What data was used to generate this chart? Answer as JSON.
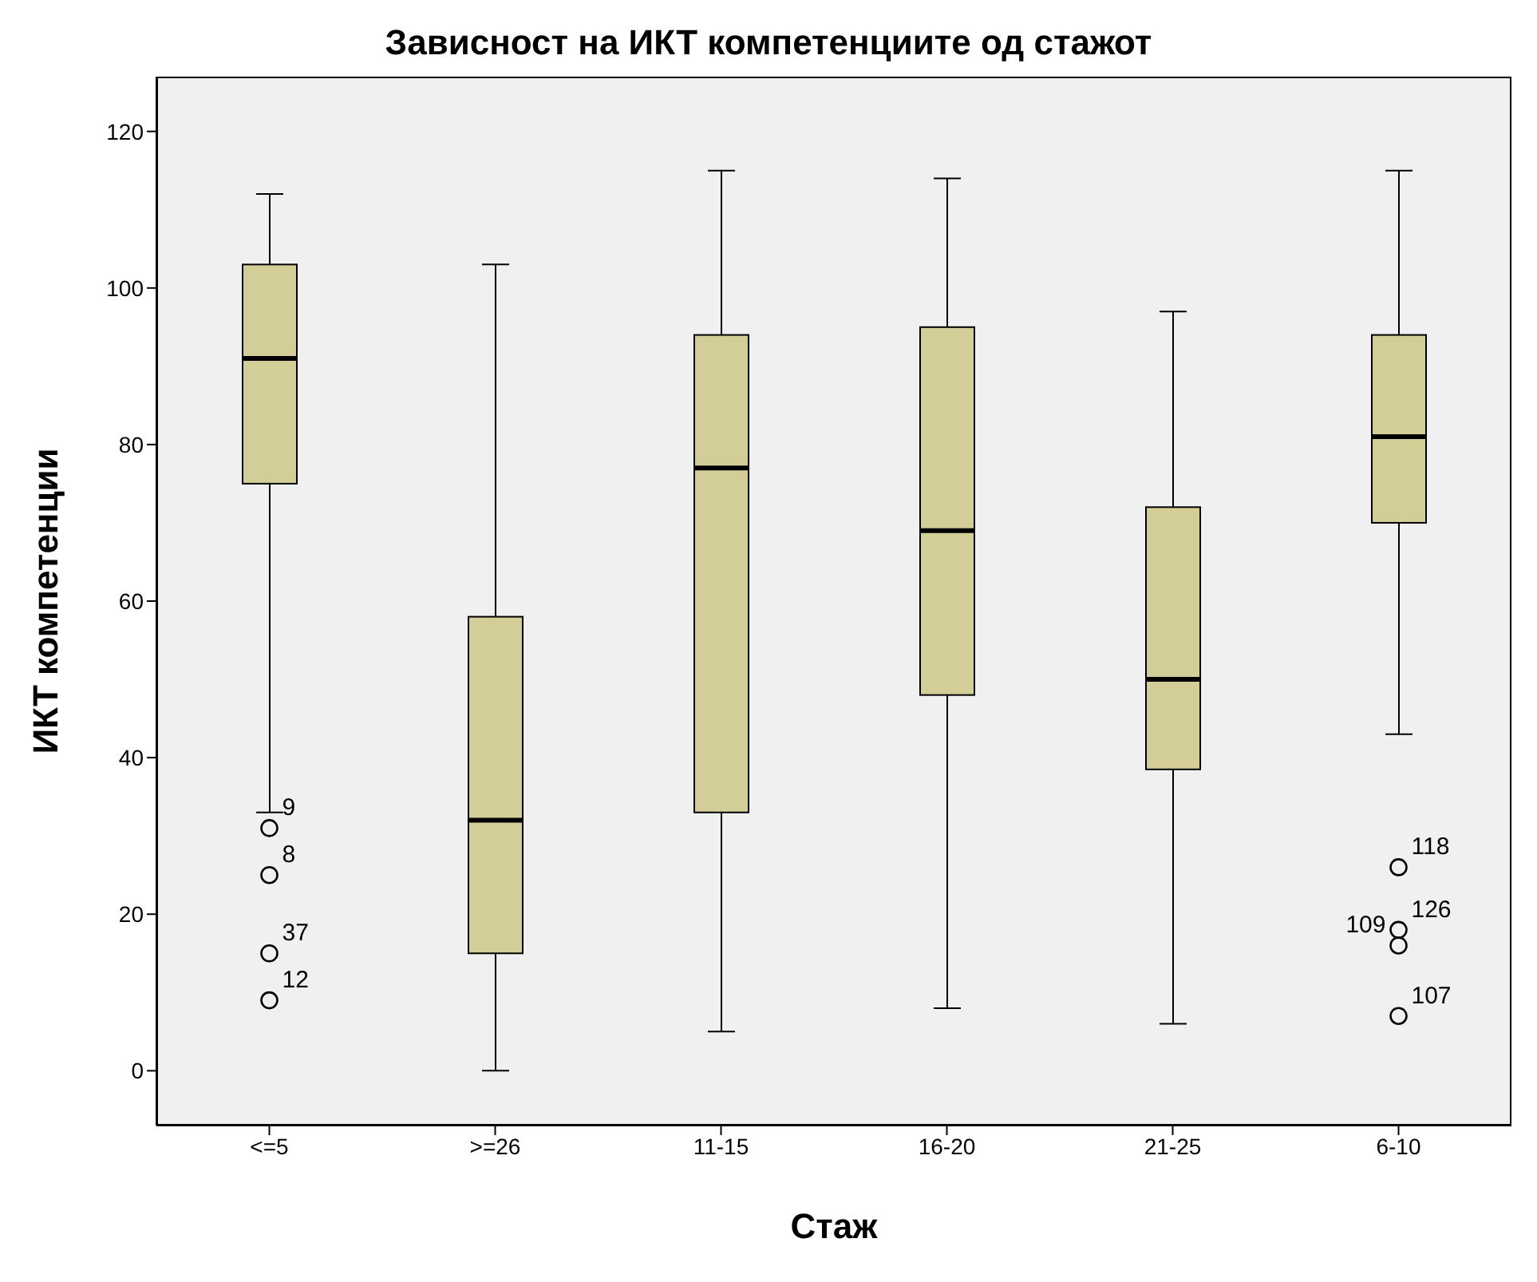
{
  "chart_data": {
    "type": "box",
    "title": "Зависност на ИКТ компетенциите од стажот",
    "xlabel": "Стаж",
    "ylabel": "ИКТ компетенции",
    "categories": [
      "<=5",
      ">=26",
      "11-15",
      "16-20",
      "21-25",
      "6-10"
    ],
    "color": "#d3ce97",
    "boxes": [
      {
        "low": 33,
        "q1": 75,
        "median": 91,
        "q3": 103,
        "high": 112,
        "outliers": [
          31,
          25,
          15,
          9
        ]
      },
      {
        "low": 0,
        "q1": 15,
        "median": 32,
        "q3": 58,
        "high": 103
      },
      {
        "low": 5,
        "q1": 33,
        "median": 77,
        "q3": 94,
        "high": 115
      },
      {
        "low": 8,
        "q1": 48,
        "median": 69,
        "q3": 95,
        "high": 114
      },
      {
        "low": 6,
        "q1": 38.5,
        "median": 50,
        "q3": 72,
        "high": 97
      },
      {
        "low": 43,
        "q1": 70,
        "median": 81,
        "q3": 94,
        "high": 115,
        "outliers": [
          26,
          18,
          16,
          7
        ]
      }
    ],
    "ylim": [
      -7,
      127
    ],
    "yticks": [
      0,
      20,
      40,
      60,
      80,
      100,
      120
    ],
    "grid": false,
    "annotations": [
      "9",
      "8",
      "37",
      "12",
      "118",
      "126",
      "109",
      "107"
    ]
  }
}
